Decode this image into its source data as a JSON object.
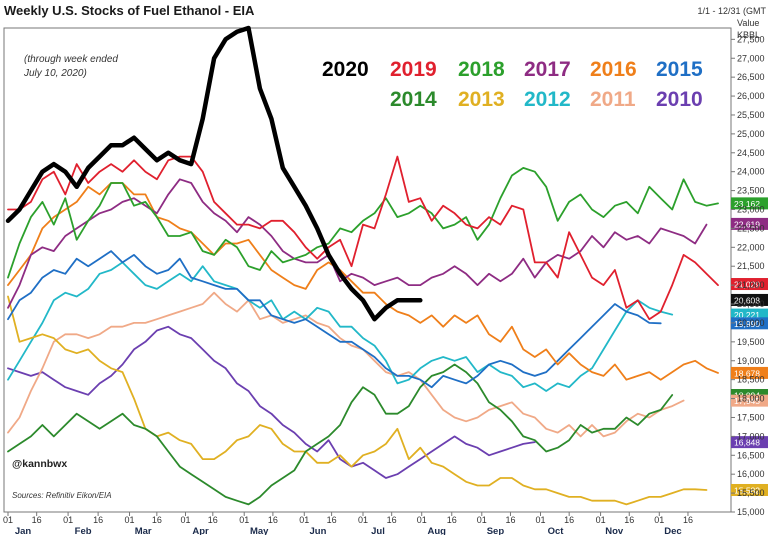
{
  "header": {
    "title": "Weekly U.S. Stocks of Fuel Ethanol - EIA",
    "range": "1/1 - 12/31 (GMT",
    "value_label": "Value",
    "unit": "KBBL"
  },
  "note": [
    "(through week ended",
    "July 10, 2020)"
  ],
  "handle": "@kannbwx",
  "source": "Sources: Refinitiv Eikon/EIA",
  "chart_data": {
    "type": "line",
    "title": "Weekly U.S. Stocks of Fuel Ethanol - EIA",
    "ylabel": "KBBL",
    "xlabel": "",
    "ylim": [
      15000,
      27800
    ],
    "x_range_weeks": [
      0,
      52
    ],
    "grid": false,
    "legend_placement": "top-right",
    "y_ticks": [
      {
        "v": 15000,
        "l": "15,000"
      },
      {
        "v": 15500,
        "l": "15,500"
      },
      {
        "v": 16000,
        "l": "16,000"
      },
      {
        "v": 16500,
        "l": "16,500"
      },
      {
        "v": 17000,
        "l": "17,000"
      },
      {
        "v": 17500,
        "l": "17,500"
      },
      {
        "v": 18000,
        "l": "18,000"
      },
      {
        "v": 18500,
        "l": "18,500"
      },
      {
        "v": 19000,
        "l": "19,000"
      },
      {
        "v": 19500,
        "l": "19,500"
      },
      {
        "v": 20000,
        "l": "20,000"
      },
      {
        "v": 20500,
        "l": "20,500"
      },
      {
        "v": 21000,
        "l": "21,000"
      },
      {
        "v": 21500,
        "l": "21,500"
      },
      {
        "v": 22000,
        "l": "22,000"
      },
      {
        "v": 22500,
        "l": "22,500"
      },
      {
        "v": 23000,
        "l": "23,000"
      },
      {
        "v": 23500,
        "l": "23,500"
      },
      {
        "v": 24000,
        "l": "24,000"
      },
      {
        "v": 24500,
        "l": "24,500"
      },
      {
        "v": 25000,
        "l": "25,000"
      },
      {
        "v": 25500,
        "l": "25,500"
      },
      {
        "v": 26000,
        "l": "26,000"
      },
      {
        "v": 26500,
        "l": "26,500"
      },
      {
        "v": 27000,
        "l": "27,000"
      },
      {
        "v": 27500,
        "l": "27,500"
      }
    ],
    "x_ticks": [
      {
        "w": 0,
        "l": "01"
      },
      {
        "w": 2.1,
        "l": "16"
      },
      {
        "w": 4.4,
        "l": "01"
      },
      {
        "w": 6.6,
        "l": "16"
      },
      {
        "w": 8.9,
        "l": "01"
      },
      {
        "w": 10.9,
        "l": "16"
      },
      {
        "w": 13,
        "l": "01"
      },
      {
        "w": 15,
        "l": "16"
      },
      {
        "w": 17.3,
        "l": "01"
      },
      {
        "w": 19.4,
        "l": "16"
      },
      {
        "w": 21.7,
        "l": "01"
      },
      {
        "w": 23.7,
        "l": "16"
      },
      {
        "w": 26,
        "l": "01"
      },
      {
        "w": 28.1,
        "l": "16"
      },
      {
        "w": 30.3,
        "l": "01"
      },
      {
        "w": 32.5,
        "l": "16"
      },
      {
        "w": 34.7,
        "l": "01"
      },
      {
        "w": 36.8,
        "l": "16"
      },
      {
        "w": 39,
        "l": "01"
      },
      {
        "w": 41.1,
        "l": "16"
      },
      {
        "w": 43.4,
        "l": "01"
      },
      {
        "w": 45.5,
        "l": "16"
      },
      {
        "w": 47.7,
        "l": "01"
      },
      {
        "w": 49.8,
        "l": "16"
      }
    ],
    "months": [
      {
        "w": 1.1,
        "l": "Jan"
      },
      {
        "w": 5.5,
        "l": "Feb"
      },
      {
        "w": 9.9,
        "l": "Mar"
      },
      {
        "w": 14.1,
        "l": "Apr"
      },
      {
        "w": 18.4,
        "l": "May"
      },
      {
        "w": 22.7,
        "l": "Jun"
      },
      {
        "w": 27.1,
        "l": "Jul"
      },
      {
        "w": 31.4,
        "l": "Aug"
      },
      {
        "w": 35.7,
        "l": "Sep"
      },
      {
        "w": 40.1,
        "l": "Oct"
      },
      {
        "w": 44.4,
        "l": "Nov"
      },
      {
        "w": 48.7,
        "l": "Dec"
      }
    ],
    "last_labels": [
      {
        "text": "23,162",
        "color": "#2ca02c",
        "y": 23162
      },
      {
        "text": "22,619",
        "color": "#8e2c83",
        "y": 22619
      },
      {
        "text": "21,029",
        "color": "#e0202e",
        "y": 21029
      },
      {
        "text": "20,608",
        "color": "#111111",
        "y": 20608
      },
      {
        "text": "20,221",
        "color": "#22b8c8",
        "y": 20221
      },
      {
        "text": "19,990",
        "color": "#1f6fc5",
        "y": 19990
      },
      {
        "text": "18,678",
        "color": "#ef7f1a",
        "y": 18678
      },
      {
        "text": "18,094",
        "color": "#2c8a2c",
        "y": 18094
      },
      {
        "text": "17,945",
        "color": "#f0a987",
        "y": 17945
      },
      {
        "text": "16,848",
        "color": "#6b3fb0",
        "y": 16848
      },
      {
        "text": "15,582",
        "color": "#e0b022",
        "y": 15582
      }
    ],
    "series": [
      {
        "name": "2020",
        "color": "#000000",
        "width": 4.5,
        "values": [
          22700,
          23000,
          23500,
          24000,
          24200,
          24000,
          23600,
          24100,
          24400,
          24700,
          24700,
          24900,
          24600,
          24300,
          24500,
          24300,
          24200,
          25400,
          27000,
          27500,
          27700,
          27800,
          26200,
          25400,
          24100,
          23600,
          23100,
          22500,
          21800,
          21300,
          20900,
          20600,
          20100,
          20400,
          20600,
          20600,
          20600
        ]
      },
      {
        "name": "2019",
        "color": "#e0202e",
        "width": 1.8,
        "values": [
          23000,
          23000,
          23200,
          23800,
          24000,
          23400,
          24200,
          23700,
          24000,
          24200,
          24000,
          24300,
          24000,
          23800,
          24300,
          24400,
          24400,
          24000,
          23200,
          22900,
          22600,
          22600,
          22500,
          22700,
          22700,
          22400,
          22000,
          21700,
          22000,
          22200,
          21500,
          22600,
          22500,
          23400,
          24400,
          23200,
          23300,
          22700,
          23100,
          22900,
          22600,
          22500,
          22800,
          22600,
          23100,
          23000,
          21600,
          21600,
          21200,
          22400,
          21800,
          21200,
          21000,
          21400,
          20400,
          20600,
          20100,
          20300,
          21000,
          21800,
          21600,
          21300,
          21000
        ]
      },
      {
        "name": "2018",
        "color": "#2ca02c",
        "width": 1.8,
        "values": [
          21200,
          22100,
          22800,
          23200,
          22600,
          23300,
          22200,
          22700,
          23100,
          23700,
          23700,
          23100,
          23200,
          22800,
          22300,
          22300,
          22400,
          21900,
          21800,
          22200,
          22000,
          21500,
          21400,
          21900,
          21600,
          21700,
          21800,
          22000,
          22100,
          22500,
          22400,
          22700,
          22900,
          23300,
          22800,
          22900,
          23100,
          22900,
          22500,
          22600,
          22800,
          22200,
          22600,
          23300,
          23900,
          24100,
          24000,
          23600,
          22700,
          23200,
          23400,
          23000,
          22800,
          23100,
          23200,
          22900,
          23600,
          23300,
          23000,
          23800,
          23200,
          23100,
          23162
        ]
      },
      {
        "name": "2017",
        "color": "#8e2c83",
        "width": 1.8,
        "values": [
          20400,
          21000,
          21800,
          22000,
          21900,
          22300,
          22500,
          22700,
          22900,
          23000,
          23200,
          23300,
          23100,
          22900,
          23400,
          23800,
          23700,
          23200,
          22900,
          22700,
          22400,
          22800,
          22600,
          22300,
          21900,
          21700,
          21600,
          21600,
          21800,
          21100,
          21300,
          21200,
          21000,
          21100,
          21200,
          21000,
          21000,
          21200,
          21300,
          21500,
          21300,
          21000,
          21300,
          21100,
          21300,
          21700,
          21200,
          21600,
          21800,
          21700,
          21900,
          22300,
          22000,
          22400,
          22200,
          22300,
          22100,
          22500,
          22400,
          22300,
          22100,
          22600
        ]
      },
      {
        "name": "2016",
        "color": "#ef7f1a",
        "width": 1.8,
        "values": [
          21000,
          21400,
          21800,
          22500,
          22800,
          23000,
          23200,
          23600,
          23400,
          23700,
          23700,
          23400,
          23400,
          22800,
          22700,
          22500,
          22400,
          22100,
          21800,
          22100,
          22100,
          22200,
          21800,
          21400,
          21200,
          21000,
          20900,
          21400,
          21600,
          21400,
          21100,
          20800,
          20800,
          20500,
          20300,
          20200,
          20000,
          20200,
          19900,
          20200,
          20000,
          20200,
          19700,
          19500,
          19900,
          19300,
          19100,
          19300,
          18900,
          19200,
          18900,
          18700,
          18600,
          18900,
          18500,
          18600,
          18700,
          18500,
          18700,
          18900,
          19000,
          18800,
          18678
        ]
      },
      {
        "name": "2015",
        "color": "#1f6fc5",
        "width": 1.8,
        "values": [
          20100,
          20600,
          20800,
          21200,
          21400,
          21300,
          21700,
          21500,
          21700,
          21900,
          21600,
          21800,
          21500,
          21300,
          21400,
          21700,
          21200,
          21100,
          21000,
          20900,
          20900,
          20600,
          20600,
          20200,
          20100,
          20000,
          20100,
          19900,
          19700,
          19500,
          19500,
          19300,
          19100,
          18800,
          18600,
          18600,
          18500,
          18300,
          18600,
          18500,
          18400,
          18600,
          18900,
          19000,
          18900,
          18700,
          18600,
          18700,
          19000,
          19300,
          19600,
          19900,
          20200,
          20500,
          20300,
          20200,
          20000,
          19990
        ]
      },
      {
        "name": "2014",
        "color": "#2c8a2c",
        "width": 1.8,
        "values": [
          16600,
          16800,
          17000,
          17300,
          17000,
          17300,
          17600,
          17400,
          17200,
          17400,
          17600,
          17300,
          17200,
          17000,
          16600,
          16200,
          16000,
          15800,
          15600,
          15400,
          15300,
          15200,
          15400,
          15700,
          15900,
          16100,
          16600,
          16800,
          17000,
          17300,
          17900,
          18300,
          18100,
          17600,
          17600,
          17800,
          18300,
          18600,
          18700,
          18900,
          18700,
          18400,
          17900,
          17700,
          17400,
          17000,
          16900,
          16600,
          16700,
          16900,
          17300,
          17100,
          17200,
          17200,
          17500,
          17300,
          17600,
          17700,
          18094
        ]
      },
      {
        "name": "2013",
        "color": "#e0b022",
        "width": 1.8,
        "values": [
          20700,
          19500,
          19600,
          19700,
          19600,
          19300,
          19200,
          19300,
          19000,
          18800,
          18700,
          18000,
          17200,
          17000,
          17100,
          16900,
          16800,
          16400,
          16400,
          16600,
          16900,
          17000,
          17300,
          17200,
          16800,
          16600,
          16600,
          16300,
          16300,
          16500,
          16200,
          16500,
          16600,
          16800,
          17200,
          16400,
          16700,
          16300,
          16200,
          16000,
          15800,
          15700,
          15700,
          15900,
          15900,
          15700,
          15600,
          15600,
          15500,
          15400,
          15400,
          15300,
          15300,
          15300,
          15200,
          15300,
          15400,
          15400,
          15500,
          15600,
          15600,
          15582
        ]
      },
      {
        "name": "2012",
        "color": "#22b8c8",
        "width": 1.8,
        "values": [
          18500,
          19000,
          19500,
          20000,
          20600,
          20800,
          20700,
          20900,
          21300,
          21400,
          21600,
          21300,
          21000,
          20900,
          21100,
          21300,
          21100,
          21500,
          21100,
          21000,
          20900,
          20600,
          20400,
          20600,
          20100,
          20300,
          20100,
          20400,
          20300,
          19900,
          19900,
          19600,
          19400,
          19000,
          18400,
          18500,
          18800,
          19000,
          19100,
          19000,
          19100,
          18700,
          18900,
          18700,
          18600,
          18300,
          18400,
          18200,
          18400,
          18300,
          18600,
          18800,
          19300,
          19800,
          20300,
          20600,
          20400,
          20300,
          20221
        ]
      },
      {
        "name": "2011",
        "color": "#f0a987",
        "width": 1.8,
        "values": [
          17100,
          17500,
          18200,
          18800,
          19500,
          19700,
          19700,
          19600,
          19700,
          19900,
          19900,
          20000,
          20000,
          20100,
          20200,
          20300,
          20400,
          20500,
          20800,
          20500,
          20300,
          20600,
          20100,
          20200,
          20000,
          20100,
          20200,
          20000,
          19900,
          19600,
          19400,
          19300,
          19000,
          18700,
          18600,
          18700,
          18500,
          18100,
          17700,
          17500,
          17400,
          17500,
          17700,
          17800,
          17900,
          17600,
          17500,
          17200,
          17100,
          17300,
          17000,
          17300,
          17000,
          17100,
          17400,
          17600,
          17500,
          17700,
          17800,
          17945
        ]
      },
      {
        "name": "2010",
        "color": "#6b3fb0",
        "width": 1.8,
        "values": [
          18800,
          18700,
          18600,
          18700,
          18500,
          18300,
          18200,
          18100,
          18400,
          18600,
          18900,
          19300,
          19500,
          19800,
          19900,
          19700,
          19600,
          19300,
          19000,
          18800,
          18400,
          18200,
          17800,
          17600,
          17300,
          17100,
          16800,
          16600,
          16900,
          16400,
          16200,
          16300,
          16100,
          15900,
          16000,
          16200,
          16400,
          16600,
          16800,
          17000,
          16800,
          16700,
          16500,
          16600,
          16700,
          16800,
          16848
        ]
      }
    ]
  },
  "legend_rows": [
    [
      {
        "name": "2020",
        "color": "#000000"
      },
      {
        "name": "2019",
        "color": "#e0202e"
      },
      {
        "name": "2018",
        "color": "#2ca02c"
      },
      {
        "name": "2017",
        "color": "#8e2c83"
      },
      {
        "name": "2016",
        "color": "#ef7f1a"
      },
      {
        "name": "2015",
        "color": "#1f6fc5"
      }
    ],
    [
      {
        "name": "2014",
        "color": "#2c8a2c"
      },
      {
        "name": "2013",
        "color": "#e0b022"
      },
      {
        "name": "2012",
        "color": "#22b8c8"
      },
      {
        "name": "2011",
        "color": "#f0a987"
      },
      {
        "name": "2010",
        "color": "#6b3fb0"
      }
    ]
  ]
}
